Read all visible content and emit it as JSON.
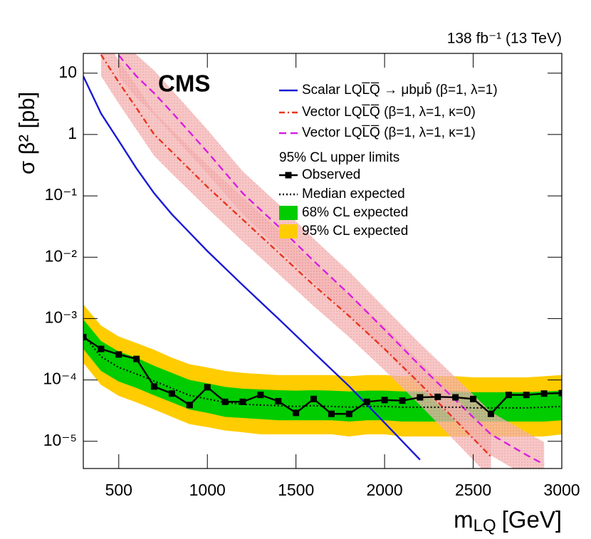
{
  "chart_data": {
    "type": "line",
    "title": "138 fb⁻¹ (13 TeV)",
    "cms_label": "CMS",
    "y_label": "σ β² [pb]",
    "x_label": {
      "symbol": "m",
      "subscript": "LQ",
      "unit": "[GeV]"
    },
    "xlim": [
      300,
      3000
    ],
    "xticks": [
      500,
      1000,
      1500,
      2000,
      2500,
      3000
    ],
    "ylim": [
      3.6e-06,
      21
    ],
    "log_y": true,
    "yticks": [
      {
        "value": 1e-05,
        "label": "10⁻⁵"
      },
      {
        "value": 0.0001,
        "label": "10⁻⁴"
      },
      {
        "value": 0.001,
        "label": "10⁻³"
      },
      {
        "value": 0.01,
        "label": "10⁻²"
      },
      {
        "value": 0.1,
        "label": "10⁻¹"
      },
      1,
      10
    ],
    "legend_heading": "95% CL upper limits",
    "series": [
      {
        "name": "Scalar LQL̅Q̅ → μbμb̄ (β=1, λ=1)",
        "color": "#1a1ad6",
        "style": "solid",
        "x": [
          300,
          400,
          500,
          600,
          700,
          800,
          1000,
          1200,
          1400,
          1600,
          1800,
          2000,
          2200
        ],
        "values": [
          8.9,
          2.2,
          0.79,
          0.28,
          0.11,
          0.05,
          0.0126,
          0.0035,
          0.001,
          0.00028,
          7.9e-05,
          2e-05,
          5e-06
        ]
      },
      {
        "name": "Vector LQL̅Q̅ (β=1, λ=1, κ=0)",
        "color": "#e8341c",
        "style": "dashdot",
        "band_color": "#f2a0a0",
        "x": [
          400,
          500,
          600,
          700,
          800,
          1000,
          1200,
          1400,
          1600,
          1800,
          2000,
          2200,
          2400,
          2600
        ],
        "values": [
          20,
          7.1,
          2.7,
          1.0,
          0.52,
          0.14,
          0.041,
          0.012,
          0.0035,
          0.0011,
          0.00032,
          8.7e-05,
          2.2e-05,
          5.6e-06
        ],
        "band_lo": [
          9,
          3.2,
          1.2,
          0.45,
          0.23,
          0.063,
          0.018,
          0.0054,
          0.0016,
          0.0005,
          0.000144,
          3.9e-05,
          9.9e-06,
          2.5e-06
        ],
        "band_hi": [
          46,
          16,
          6.2,
          2.3,
          1.2,
          0.32,
          0.094,
          0.028,
          0.008,
          0.0025,
          0.00074,
          0.0002,
          5.1e-05,
          1.3e-05
        ]
      },
      {
        "name": "Vector LQL̅Q̅ (β=1, λ=1, κ=1)",
        "color": "#d81ee0",
        "style": "dashed",
        "band_color": "#f2a0a0",
        "x": [
          500,
          600,
          700,
          800,
          1000,
          1200,
          1400,
          1600,
          1800,
          2000,
          2200,
          2400,
          2600,
          2800,
          2900
        ],
        "values": [
          19.5,
          8.9,
          4.7,
          2.3,
          0.52,
          0.11,
          0.032,
          0.0087,
          0.0025,
          0.00066,
          0.00017,
          4.7e-05,
          1.3e-05,
          6e-06,
          4.2e-06
        ],
        "band_lo": [
          8.8,
          4.0,
          2.1,
          1.0,
          0.23,
          0.05,
          0.014,
          0.0039,
          0.0011,
          0.0003,
          7.7e-05,
          2.1e-05,
          5.9e-06,
          2.7e-06,
          1.9e-06
        ],
        "band_hi": [
          45,
          20,
          11,
          5.3,
          1.2,
          0.25,
          0.074,
          0.02,
          0.0058,
          0.0015,
          0.00039,
          0.00011,
          3e-05,
          1.4e-05,
          9.7e-06
        ]
      },
      {
        "name": "Observed",
        "color": "#000000",
        "style": "solid",
        "marker": "square",
        "x": [
          300,
          400,
          500,
          600,
          700,
          800,
          900,
          1000,
          1100,
          1200,
          1300,
          1400,
          1500,
          1600,
          1700,
          1800,
          1900,
          2000,
          2100,
          2200,
          2300,
          2400,
          2500,
          2600,
          2700,
          2800,
          2900,
          3000
        ],
        "values": [
          0.0005,
          0.00032,
          0.00026,
          0.00022,
          7.8e-05,
          6e-05,
          3.9e-05,
          7.6e-05,
          4.4e-05,
          4.4e-05,
          5.7e-05,
          4.5e-05,
          2.9e-05,
          4.9e-05,
          2.8e-05,
          2.8e-05,
          4.4e-05,
          4.7e-05,
          4.6e-05,
          5.2e-05,
          5.3e-05,
          5.2e-05,
          4.9e-05,
          2.8e-05,
          5.7e-05,
          5.7e-05,
          6e-05,
          6.1e-05
        ]
      },
      {
        "name": "Median expected",
        "color": "#000000",
        "style": "dotted",
        "x": [
          300,
          400,
          500,
          600,
          700,
          800,
          900,
          1000,
          1100,
          1200,
          1300,
          1400,
          1500,
          1600,
          1700,
          1800,
          1900,
          2000,
          2100,
          2200,
          2300,
          2400,
          2500,
          2600,
          2700,
          2800,
          2900,
          3000
        ],
        "values": [
          0.00054,
          0.00024,
          0.00016,
          0.000125,
          9.6e-05,
          7.3e-05,
          5.6e-05,
          4.9e-05,
          4.3e-05,
          4e-05,
          3.9e-05,
          3.8e-05,
          3.7e-05,
          3.8e-05,
          3.7e-05,
          3.6e-05,
          3.7e-05,
          3.7e-05,
          3.6e-05,
          3.6e-05,
          3.6e-05,
          3.6e-05,
          3.5e-05,
          3.5e-05,
          3.5e-05,
          3.5e-05,
          3.6e-05,
          3.7e-05
        ]
      }
    ],
    "bands": [
      {
        "name": "68% CL expected",
        "color": "#00cc00",
        "x": [
          300,
          400,
          500,
          600,
          700,
          800,
          900,
          1000,
          1100,
          1200,
          1300,
          1400,
          1500,
          1600,
          1700,
          1800,
          1900,
          2000,
          2100,
          2200,
          2300,
          2400,
          2500,
          2600,
          2700,
          2800,
          2900,
          3000
        ],
        "lo": [
          0.00032,
          0.00014,
          9.4e-05,
          7.4e-05,
          5.6e-05,
          4.3e-05,
          3.3e-05,
          2.9e-05,
          2.5e-05,
          2.4e-05,
          2.3e-05,
          2.2e-05,
          2.2e-05,
          2.2e-05,
          2.2e-05,
          2.1e-05,
          2.2e-05,
          2.2e-05,
          2.1e-05,
          2.1e-05,
          2.1e-05,
          2.1e-05,
          2.1e-05,
          2.1e-05,
          2.1e-05,
          2.1e-05,
          2.1e-05,
          2.2e-05
        ],
        "hi": [
          0.00097,
          0.00043,
          0.00029,
          0.00023,
          0.00017,
          0.00013,
          0.0001,
          8.8e-05,
          7.7e-05,
          7.2e-05,
          7e-05,
          6.8e-05,
          6.7e-05,
          6.8e-05,
          6.7e-05,
          6.5e-05,
          6.7e-05,
          6.7e-05,
          6.5e-05,
          6.5e-05,
          6.5e-05,
          6.5e-05,
          6.3e-05,
          6.3e-05,
          6.3e-05,
          6.3e-05,
          6.5e-05,
          6.7e-05
        ]
      },
      {
        "name": "95% CL expected",
        "color": "#ffcc00",
        "x": [
          300,
          400,
          500,
          600,
          700,
          800,
          900,
          1000,
          1100,
          1200,
          1300,
          1400,
          1500,
          1600,
          1700,
          1800,
          1900,
          2000,
          2100,
          2200,
          2300,
          2400,
          2500,
          2600,
          2700,
          2800,
          2900,
          3000
        ],
        "lo": [
          0.00019,
          8.3e-05,
          5.5e-05,
          4.3e-05,
          3.3e-05,
          2.5e-05,
          1.9e-05,
          1.7e-05,
          1.5e-05,
          1.4e-05,
          1.3e-05,
          1.3e-05,
          1.3e-05,
          1.3e-05,
          1.3e-05,
          1.2e-05,
          1.3e-05,
          1.3e-05,
          1.2e-05,
          1.2e-05,
          1.2e-05,
          1.2e-05,
          1.2e-05,
          1.2e-05,
          1.2e-05,
          1.2e-05,
          1.2e-05,
          1.3e-05
        ],
        "hi": [
          0.0017,
          0.00077,
          0.00051,
          0.0004,
          0.00031,
          0.00023,
          0.00018,
          0.00016,
          0.00014,
          0.00013,
          0.000125,
          0.00012,
          0.00012,
          0.00012,
          0.00012,
          0.000115,
          0.00012,
          0.00012,
          0.000115,
          0.000115,
          0.000115,
          0.000115,
          0.00011,
          0.00011,
          0.00011,
          0.00011,
          0.000115,
          0.00012
        ]
      }
    ]
  }
}
